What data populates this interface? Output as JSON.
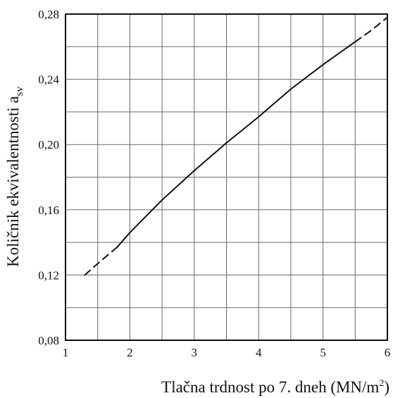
{
  "chart_data": {
    "type": "line",
    "xlabel": "Tlačna trdnost po 7. dneh (MN/m",
    "xlabel_sup": "2",
    "xlabel_end": ")",
    "ylabel": "Količnik ekvivalentnosti a",
    "ylabel_sub": "sv",
    "xlim": [
      1,
      6
    ],
    "ylim": [
      0.08,
      0.28
    ],
    "x_ticks": [
      1,
      2,
      3,
      4,
      5,
      6
    ],
    "x_tick_labels": [
      "1",
      "2",
      "3",
      "4",
      "5",
      "6"
    ],
    "y_ticks": [
      0.08,
      0.12,
      0.16,
      0.2,
      0.24,
      0.28
    ],
    "y_tick_labels": [
      "0,08",
      "0,12",
      "0,16",
      "0,20",
      "0,24",
      "0,28"
    ],
    "minor_grid_step": {
      "x": 0.5,
      "y": 0.02
    },
    "grid": true,
    "series": [
      {
        "style": "dashed",
        "x": [
          1.3,
          1.5,
          1.8
        ],
        "y": [
          0.12,
          0.127,
          0.137
        ]
      },
      {
        "style": "solid",
        "x": [
          1.8,
          2.0,
          2.5,
          3.0,
          3.5,
          4.0,
          4.5,
          5.0,
          5.5
        ],
        "y": [
          0.137,
          0.146,
          0.166,
          0.184,
          0.201,
          0.217,
          0.234,
          0.249,
          0.263
        ]
      },
      {
        "style": "dashed",
        "x": [
          5.5,
          5.75,
          6.0
        ],
        "y": [
          0.263,
          0.27,
          0.278
        ]
      }
    ]
  }
}
